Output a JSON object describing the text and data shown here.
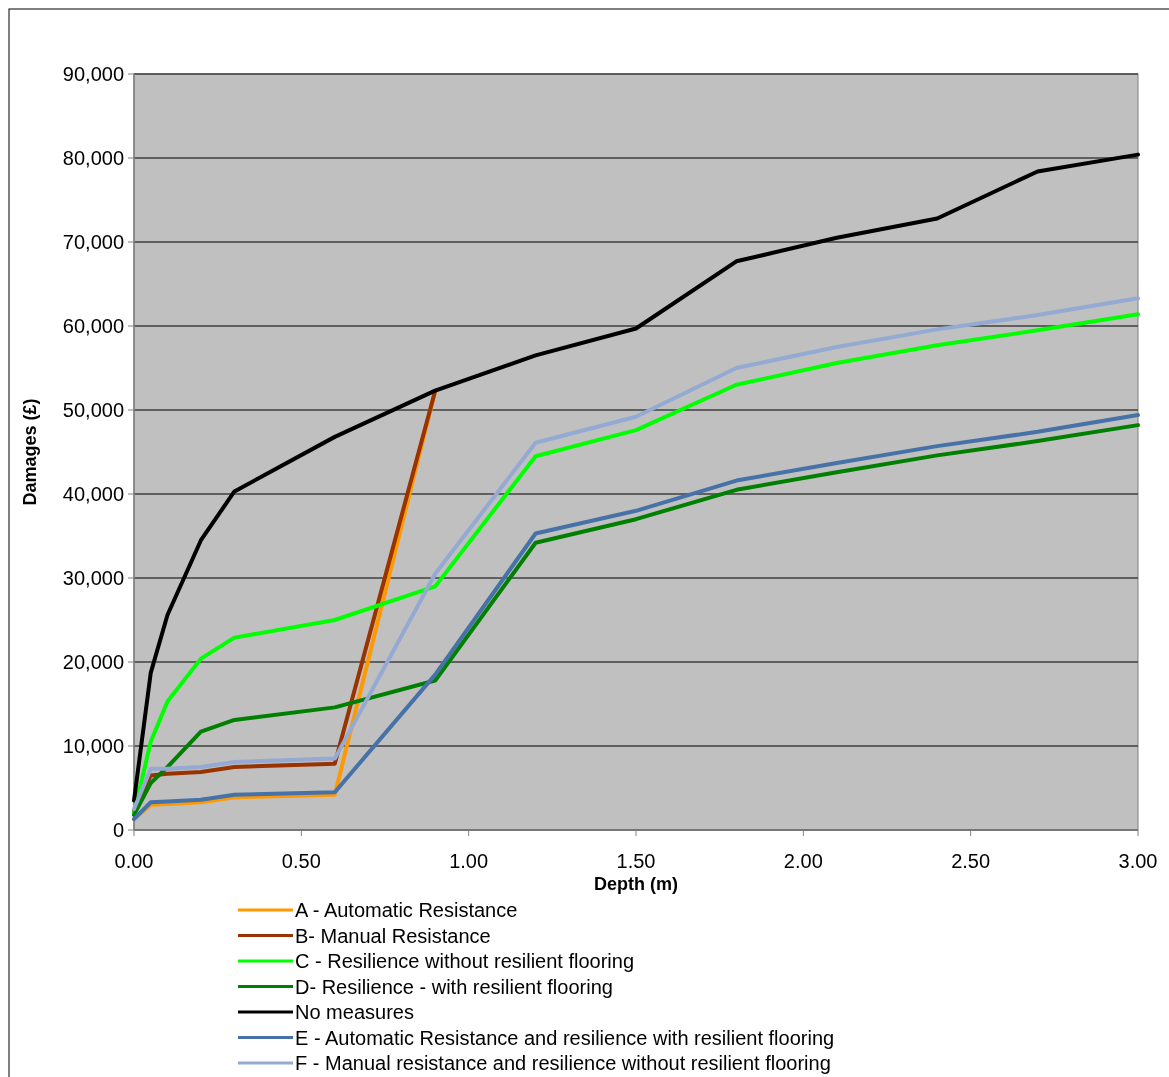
{
  "chart_data": {
    "type": "line",
    "xlabel": "Depth (m)",
    "ylabel": "Damages (£)",
    "x": [
      0,
      0.05,
      0.1,
      0.2,
      0.3,
      0.6,
      0.9,
      1.2,
      1.5,
      1.8,
      2.1,
      2.4,
      2.7,
      3.0
    ],
    "xlim": [
      0,
      3
    ],
    "xticks": [
      {
        "value": 0,
        "label": "0.00"
      },
      {
        "value": 0.5,
        "label": "0.50"
      },
      {
        "value": 1,
        "label": "1.00"
      },
      {
        "value": 1.5,
        "label": "1.50"
      },
      {
        "value": 2,
        "label": "2.00"
      },
      {
        "value": 2.5,
        "label": "2.50"
      },
      {
        "value": 3,
        "label": "3.00"
      }
    ],
    "ylim": [
      0,
      90000
    ],
    "yticks": [
      0,
      {
        "value": 10000,
        "label": "10,000"
      },
      {
        "value": 20000,
        "label": "20,000"
      },
      {
        "value": 30000,
        "label": "30,000"
      },
      {
        "value": 40000,
        "label": "40,000"
      },
      {
        "value": 50000,
        "label": "50,000"
      },
      {
        "value": 60000,
        "label": "60,000"
      },
      {
        "value": 70000,
        "label": "70,000"
      },
      {
        "value": 80000,
        "label": "80,000"
      },
      {
        "value": 90000,
        "label": "90,000"
      }
    ],
    "grid": "y",
    "legend": "bottom",
    "marker": "none",
    "line_style": "solid",
    "series": [
      {
        "name": "A - Automatic Resistance",
        "color": "#ff9900",
        "values": [
          1300,
          3000,
          3100,
          3300,
          3900,
          4200,
          52300,
          null,
          null,
          null,
          null,
          null,
          null,
          null
        ]
      },
      {
        "name": "B- Manual Resistance",
        "color": "#993300",
        "values": [
          2300,
          6500,
          6700,
          6900,
          7500,
          7900,
          52300,
          null,
          null,
          null,
          null,
          null,
          null,
          null
        ]
      },
      {
        "name": "C - Resilience without resilient flooring",
        "color": "#00ff00",
        "values": [
          2000,
          10500,
          15300,
          20400,
          22900,
          25000,
          29000,
          44500,
          47600,
          53000,
          55600,
          57700,
          59500,
          61400
        ]
      },
      {
        "name": "D- Resilience - with resilient flooring",
        "color": "#008000",
        "values": [
          1800,
          5600,
          7500,
          11700,
          13100,
          14600,
          17800,
          34200,
          37000,
          40500,
          42600,
          44600,
          46300,
          48200
        ]
      },
      {
        "name": "No measures",
        "color": "#000000",
        "values": [
          3500,
          18700,
          25600,
          34500,
          40300,
          46800,
          52300,
          56500,
          59700,
          67700,
          70500,
          72800,
          78400,
          80400
        ]
      },
      {
        "name": "E - Automatic Resistance and resilience with resilient flooring",
        "color": "#4672a8",
        "values": [
          1300,
          3300,
          3400,
          3600,
          4200,
          4500,
          18500,
          35300,
          38000,
          41600,
          43700,
          45700,
          47400,
          49400
        ]
      },
      {
        "name": "F - Manual resistance and resilience without resilient flooring",
        "color": "#94aad2",
        "values": [
          2500,
          7300,
          7300,
          7500,
          8100,
          8500,
          30500,
          46100,
          49200,
          55000,
          57500,
          59600,
          61300,
          63300
        ]
      }
    ]
  }
}
